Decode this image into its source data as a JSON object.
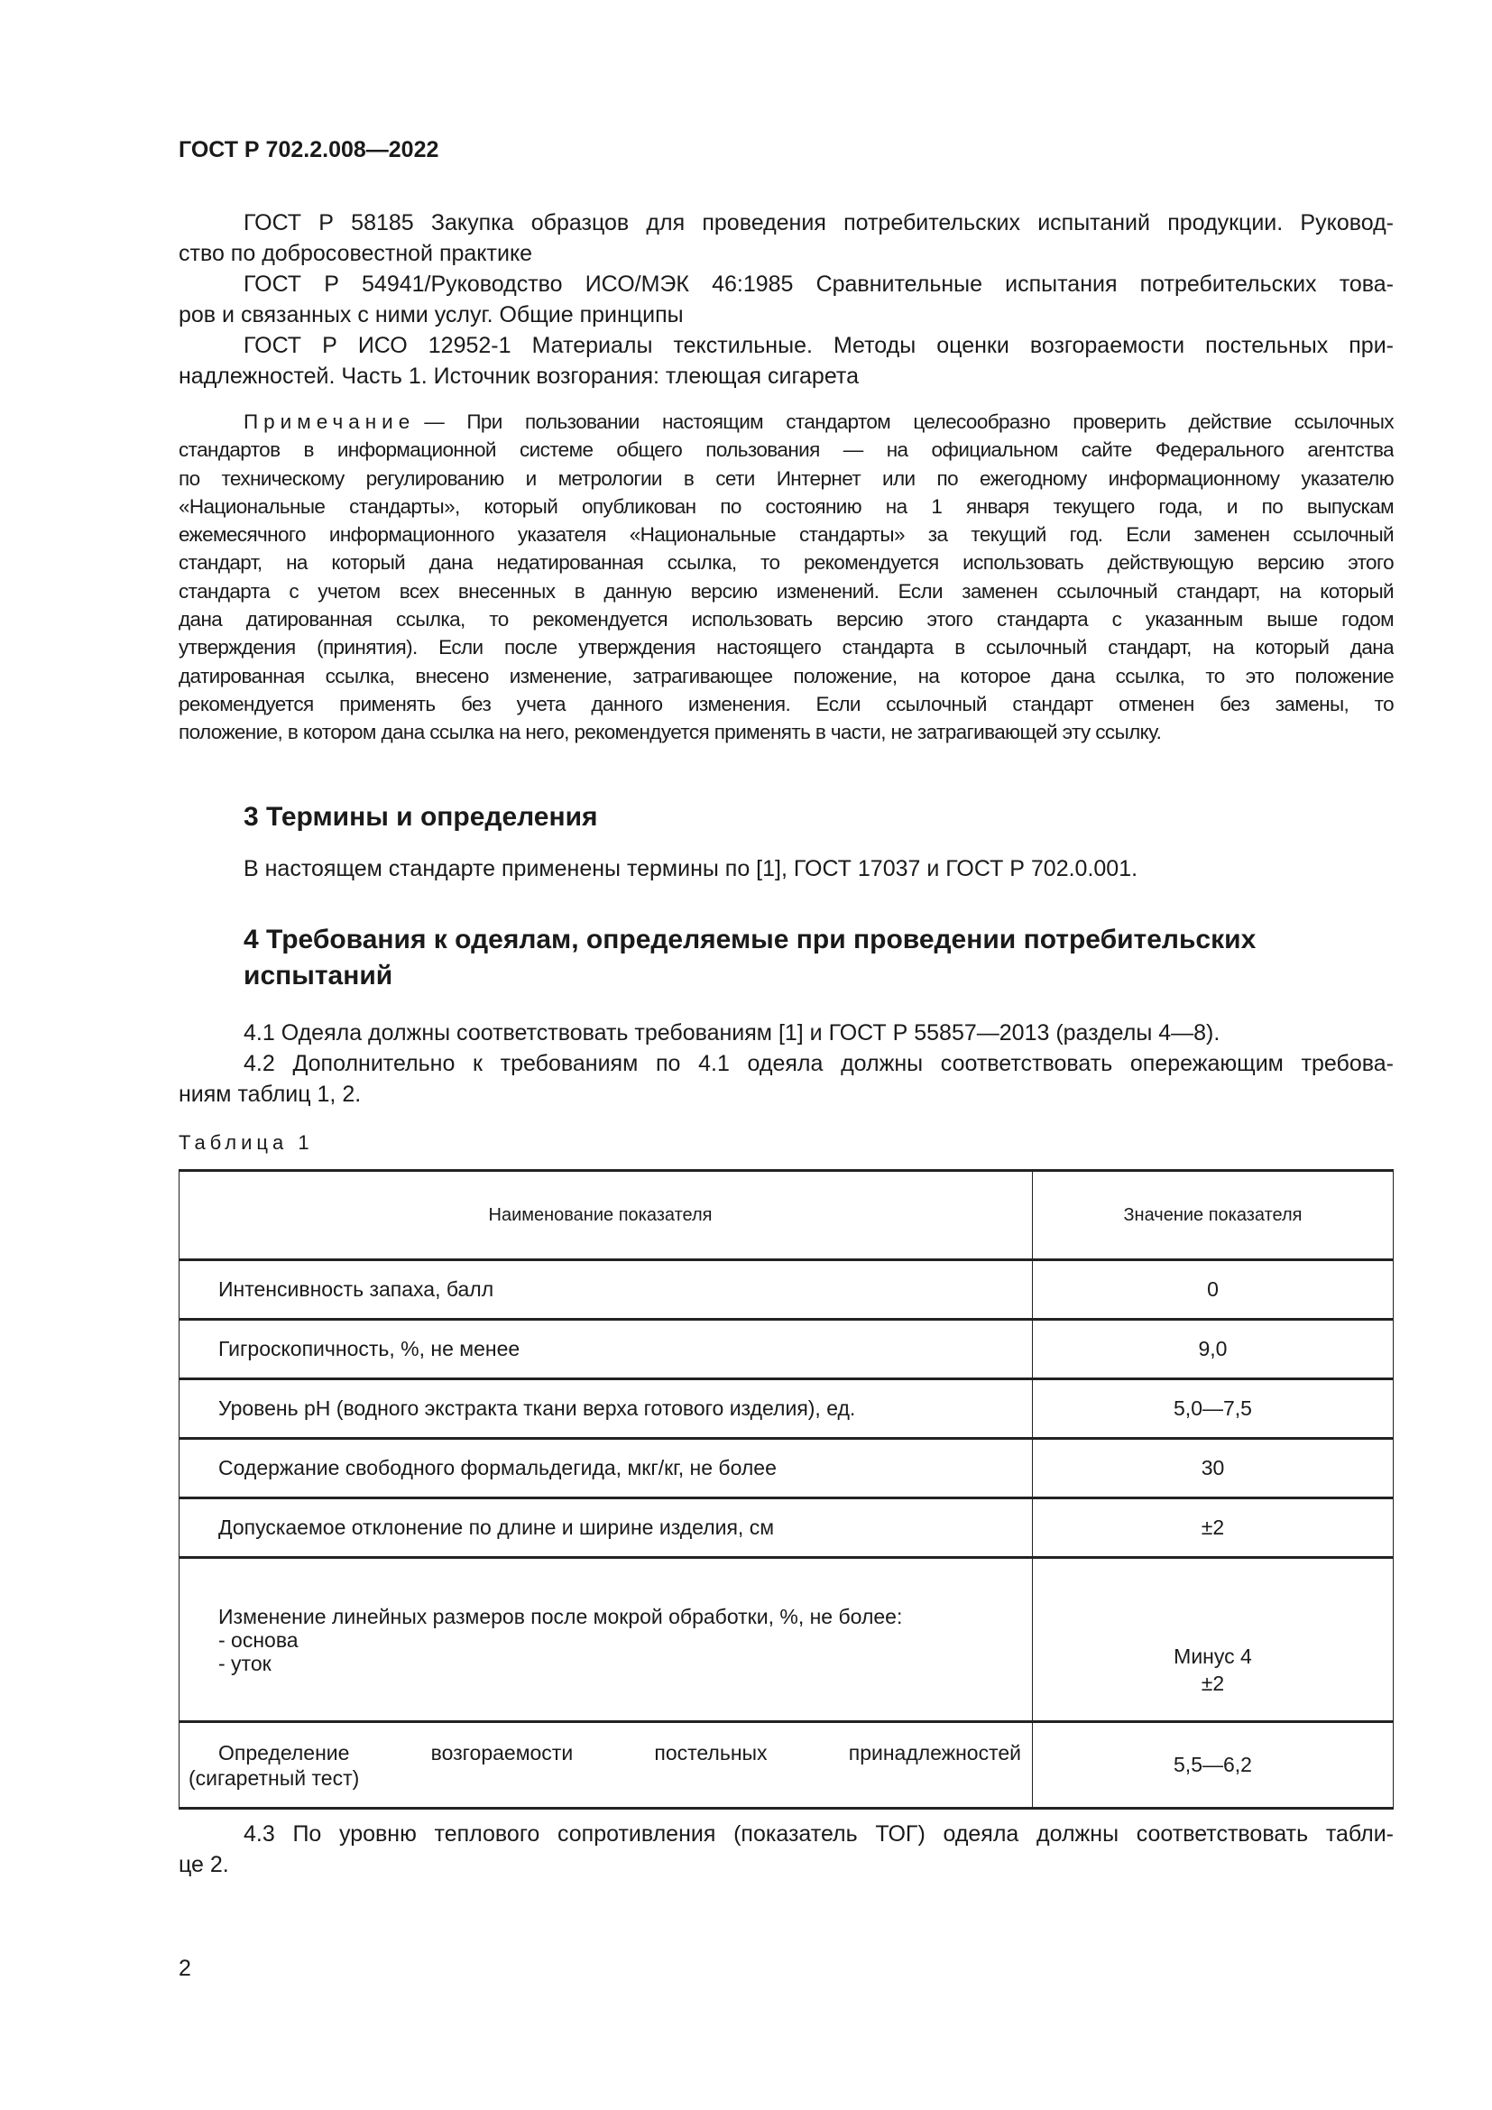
{
  "header": {
    "doc_code": "ГОСТ Р 702.2.008—2022"
  },
  "references": [
    [
      "ГОСТ Р 58185 Закупка образцов для проведения потребительских испытаний продукции. Руковод-",
      "ство по добросовестной практике"
    ],
    [
      "ГОСТ Р 54941/Руководство ИСО/МЭК 46:1985 Сравнительные испытания потребительских това-",
      "ров и связанных с ними услуг. Общие принципы"
    ],
    [
      "ГОСТ Р ИСО 12952-1 Материалы текстильные. Методы оценки возгораемости постельных при-",
      "надлежностей. Часть 1. Источник возгорания: тлеющая сигарета"
    ]
  ],
  "note": {
    "label": "Примечание",
    "lines": [
      "— При пользовании настоящим стандартом целесообразно проверить действие ссылочных",
      "стандартов в информационной системе общего пользования — на официальном сайте Федерального агентства",
      "по техническому регулированию и метрологии в сети Интернет или по ежегодному информационному указателю",
      "«Национальные стандарты», который опубликован по состоянию на 1 января текущего года, и по выпускам",
      "ежемесячного информационного указателя «Национальные стандарты» за текущий год. Если заменен ссылочный",
      "стандарт, на который дана недатированная ссылка, то рекомендуется использовать действующую версию этого",
      "стандарта с учетом всех внесенных в данную версию изменений. Если заменен ссылочный стандарт, на который",
      "дана датированная ссылка, то рекомендуется использовать версию этого стандарта с указанным выше годом",
      "утверждения (принятия). Если после утверждения настоящего стандарта в ссылочный стандарт, на который дана",
      "датированная ссылка, внесено изменение, затрагивающее положение, на которое дана ссылка, то это положение",
      "рекомендуется применять без учета данного изменения. Если ссылочный стандарт отменен без замены, то",
      "положение, в котором дана ссылка на него, рекомендуется применять в части, не затрагивающей эту ссылку."
    ]
  },
  "section3": {
    "title": "3 Термины и определения",
    "text": "В настоящем стандарте применены термины по [1], ГОСТ 17037 и ГОСТ Р 702.0.001."
  },
  "section4": {
    "title_lines": [
      "4 Требования к одеялам, определяемые при проведении потребительских",
      "испытаний"
    ],
    "p41": [
      "4.1 Одеяла должны соответствовать требованиям [1] и ГОСТ Р 55857—2013 (разделы 4—8)."
    ],
    "p42": [
      "4.2 Дополнительно к требованиям по 4.1 одеяла должны соответствовать опережающим требова-",
      "ниям таблиц  1, 2."
    ],
    "p43": [
      "4.3 По уровню теплового сопротивления (показатель ТОГ) одеяла должны соответствовать табли-",
      "це 2."
    ]
  },
  "table1": {
    "caption": "Таблица 1",
    "headers": [
      "Наименование показателя",
      "Значение показателя"
    ],
    "rows": [
      {
        "name": "Интенсивность запаха, балл",
        "value": "0"
      },
      {
        "name": "Гигроскопичность, %, не менее",
        "value": "9,0"
      },
      {
        "name": "Уровень pH (водного экстракта ткани верха готового изделия), ед.",
        "value": "5,0—7,5"
      },
      {
        "name": "Содержание свободного формальдегида, мкг/кг, не более",
        "value": "30"
      },
      {
        "name": "Допускаемое отклонение по длине и ширине изделия, см",
        "value": "±2"
      }
    ],
    "shrink_row": {
      "name": "Изменение линейных размеров после мокрой обработки, %, не более:",
      "sub": [
        "- основа",
        "- уток"
      ],
      "values": [
        "Минус 4",
        "±2"
      ]
    },
    "fire_row": {
      "name_lines": [
        "Определение возгораемости постельных принадлежностей",
        "(сигаретный тест)"
      ],
      "value": "5,5—6,2"
    }
  },
  "page_number": "2"
}
